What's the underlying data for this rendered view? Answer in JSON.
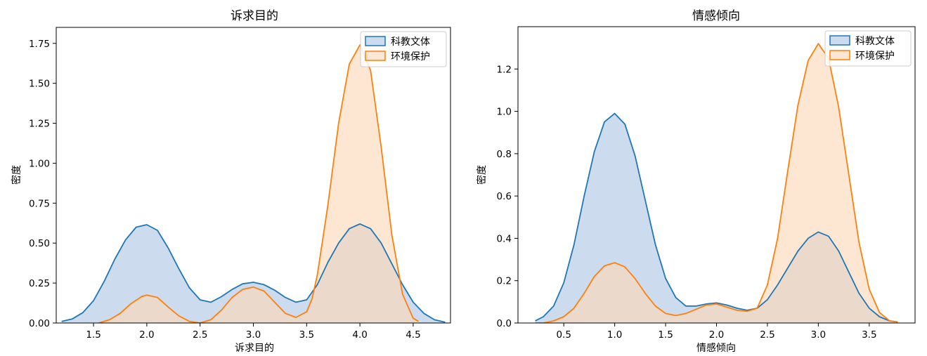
{
  "colors": {
    "series1": "#1f77b4",
    "series2": "#ff7f0e",
    "fill1": "#c9d9ec",
    "fill2": "#fdd8b6"
  },
  "chart_data": [
    {
      "type": "area",
      "title": "诉求目的",
      "xlabel": "诉求目的",
      "ylabel": "密度",
      "xlim": [
        1.15,
        4.85
      ],
      "ylim": [
        0,
        1.85
      ],
      "xticks": [
        "1.5",
        "2.0",
        "2.5",
        "3.0",
        "3.5",
        "4.0",
        "4.5"
      ],
      "yticks": [
        "0.00",
        "0.25",
        "0.50",
        "0.75",
        "1.00",
        "1.25",
        "1.50",
        "1.75"
      ],
      "legend": "top-right",
      "series": [
        {
          "name": "科教文体",
          "x": [
            1.2,
            1.3,
            1.4,
            1.5,
            1.6,
            1.7,
            1.8,
            1.9,
            2.0,
            2.1,
            2.2,
            2.3,
            2.4,
            2.5,
            2.6,
            2.7,
            2.8,
            2.9,
            3.0,
            3.1,
            3.2,
            3.3,
            3.4,
            3.5,
            3.6,
            3.7,
            3.8,
            3.9,
            4.0,
            4.1,
            4.2,
            4.3,
            4.4,
            4.5,
            4.6,
            4.7,
            4.8
          ],
          "y": [
            0.01,
            0.025,
            0.065,
            0.14,
            0.26,
            0.4,
            0.52,
            0.6,
            0.615,
            0.58,
            0.47,
            0.34,
            0.22,
            0.145,
            0.13,
            0.165,
            0.21,
            0.245,
            0.255,
            0.24,
            0.205,
            0.16,
            0.13,
            0.145,
            0.24,
            0.38,
            0.5,
            0.59,
            0.62,
            0.59,
            0.5,
            0.37,
            0.24,
            0.13,
            0.06,
            0.02,
            0.005
          ]
        },
        {
          "name": "环境保护",
          "x": [
            1.55,
            1.65,
            1.75,
            1.85,
            1.95,
            2.0,
            2.1,
            2.2,
            2.3,
            2.4,
            2.5,
            2.6,
            2.7,
            2.8,
            2.9,
            3.0,
            3.1,
            3.2,
            3.3,
            3.4,
            3.5,
            3.55,
            3.6,
            3.7,
            3.8,
            3.9,
            4.0,
            4.1,
            4.2,
            4.3,
            4.4,
            4.5,
            4.55
          ],
          "y": [
            0.0,
            0.02,
            0.06,
            0.12,
            0.165,
            0.175,
            0.16,
            0.1,
            0.045,
            0.01,
            0.0,
            0.02,
            0.08,
            0.16,
            0.21,
            0.225,
            0.2,
            0.13,
            0.06,
            0.035,
            0.07,
            0.15,
            0.3,
            0.74,
            1.25,
            1.62,
            1.74,
            1.58,
            1.1,
            0.55,
            0.18,
            0.03,
            0.01
          ]
        }
      ]
    },
    {
      "type": "area",
      "title": "情感倾向",
      "xlabel": "情感倾向",
      "ylabel": "密度",
      "xlim": [
        0.05,
        3.95
      ],
      "ylim": [
        0,
        1.4
      ],
      "xticks": [
        "0.5",
        "1.0",
        "1.5",
        "2.0",
        "2.5",
        "3.0",
        "3.5"
      ],
      "yticks": [
        "0.0",
        "0.2",
        "0.4",
        "0.6",
        "0.8",
        "1.0",
        "1.2"
      ],
      "legend": "top-right",
      "series": [
        {
          "name": "科教文体",
          "x": [
            0.22,
            0.3,
            0.4,
            0.5,
            0.6,
            0.7,
            0.8,
            0.9,
            1.0,
            1.1,
            1.2,
            1.3,
            1.4,
            1.5,
            1.6,
            1.7,
            1.8,
            1.9,
            2.0,
            2.1,
            2.2,
            2.3,
            2.4,
            2.5,
            2.6,
            2.7,
            2.8,
            2.9,
            3.0,
            3.1,
            3.2,
            3.3,
            3.4,
            3.5,
            3.6,
            3.7,
            3.78
          ],
          "y": [
            0.01,
            0.03,
            0.08,
            0.19,
            0.37,
            0.6,
            0.81,
            0.95,
            0.99,
            0.94,
            0.79,
            0.58,
            0.37,
            0.21,
            0.12,
            0.08,
            0.08,
            0.09,
            0.095,
            0.085,
            0.07,
            0.06,
            0.07,
            0.11,
            0.18,
            0.26,
            0.34,
            0.4,
            0.43,
            0.41,
            0.34,
            0.24,
            0.14,
            0.07,
            0.03,
            0.01,
            0.005
          ]
        },
        {
          "name": "环境保护",
          "x": [
            0.22,
            0.3,
            0.4,
            0.5,
            0.6,
            0.7,
            0.8,
            0.9,
            1.0,
            1.1,
            1.2,
            1.3,
            1.4,
            1.5,
            1.6,
            1.7,
            1.8,
            1.9,
            2.0,
            2.1,
            2.2,
            2.3,
            2.4,
            2.5,
            2.6,
            2.7,
            2.8,
            2.9,
            3.0,
            3.1,
            3.2,
            3.3,
            3.4,
            3.5,
            3.6,
            3.7,
            3.78
          ],
          "y": [
            0.0,
            0.0,
            0.01,
            0.03,
            0.07,
            0.14,
            0.22,
            0.27,
            0.285,
            0.265,
            0.21,
            0.14,
            0.08,
            0.045,
            0.035,
            0.045,
            0.065,
            0.085,
            0.09,
            0.075,
            0.06,
            0.055,
            0.07,
            0.18,
            0.4,
            0.72,
            1.03,
            1.24,
            1.32,
            1.25,
            1.02,
            0.7,
            0.38,
            0.16,
            0.05,
            0.01,
            0.005
          ]
        }
      ]
    }
  ]
}
